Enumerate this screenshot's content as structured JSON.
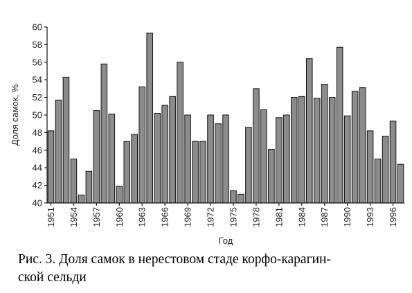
{
  "chart_data": {
    "type": "bar",
    "ylabel": "Доля самок, %",
    "xlabel": "Год",
    "ylim": [
      40,
      60
    ],
    "yticks": [
      40,
      42,
      44,
      46,
      48,
      50,
      52,
      54,
      56,
      58,
      60
    ],
    "xtick_labels": [
      "1951",
      "1954",
      "1957",
      "1960",
      "1963",
      "1966",
      "1969",
      "1972",
      "1975",
      "1978",
      "1981",
      "1984",
      "1987",
      "1990",
      "1993",
      "1996"
    ],
    "x": [
      1951,
      1952,
      1953,
      1954,
      1955,
      1956,
      1957,
      1958,
      1959,
      1960,
      1961,
      1962,
      1963,
      1964,
      1965,
      1966,
      1967,
      1968,
      1969,
      1970,
      1971,
      1972,
      1973,
      1974,
      1975,
      1976,
      1977,
      1978,
      1979,
      1980,
      1981,
      1982,
      1983,
      1984,
      1985,
      1986,
      1987,
      1988,
      1989,
      1990,
      1991,
      1992,
      1993,
      1994,
      1995,
      1996,
      1997
    ],
    "values": [
      48.2,
      51.7,
      54.3,
      45.0,
      40.9,
      43.6,
      50.5,
      55.8,
      50.1,
      41.9,
      47.0,
      47.8,
      53.2,
      59.3,
      50.2,
      51.1,
      52.1,
      56.0,
      50.0,
      47.0,
      47.0,
      50.0,
      49.0,
      50.0,
      41.4,
      41.0,
      48.6,
      53.0,
      50.6,
      46.1,
      49.7,
      50.0,
      52.0,
      52.1,
      56.4,
      51.9,
      53.5,
      52.0,
      57.7,
      49.9,
      52.7,
      53.1,
      48.2,
      45.0,
      47.6,
      49.3,
      44.4
    ],
    "grid": false,
    "legend": false
  },
  "caption": "Рис. 3. Доля самок в нерестовом стаде корфо-карагин-ской сельди",
  "caption_lines": [
    "Рис. 3. Доля самок в нерестовом стаде корфо-карагин-",
    "ской сельди"
  ]
}
